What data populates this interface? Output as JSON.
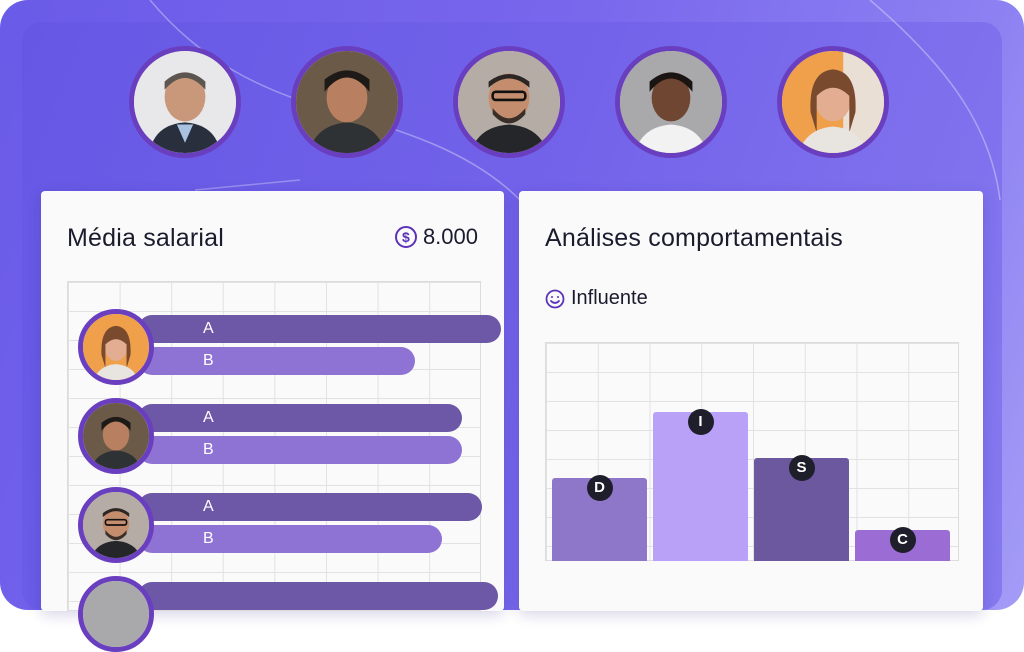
{
  "salary": {
    "title": "Média salarial",
    "amount": "8.000",
    "icon": "dollar-icon",
    "rows": [
      {
        "a_label": "A",
        "b_label": "B",
        "a_value": 0.92,
        "b_value": 0.7
      },
      {
        "a_label": "A",
        "b_label": "B",
        "a_value": 0.82,
        "b_value": 0.82
      },
      {
        "a_label": "A",
        "b_label": "B",
        "a_value": 0.87,
        "b_value": 0.77
      }
    ]
  },
  "behavior": {
    "title": "Análises comportamentais",
    "profile_label": "Influente",
    "icon": "smile-icon",
    "bars": [
      {
        "label": "D",
        "value": 0.38
      },
      {
        "label": "I",
        "value": 0.68
      },
      {
        "label": "S",
        "value": 0.47
      },
      {
        "label": "C",
        "value": 0.14
      }
    ]
  },
  "colors": {
    "accent": "#6a3fbf",
    "bar_a": "#6d58a8",
    "bar_b": "#8e73d4",
    "disc": [
      "#8e77c8",
      "#b9a1f7",
      "#6c589f",
      "#9b6cd3"
    ]
  }
}
